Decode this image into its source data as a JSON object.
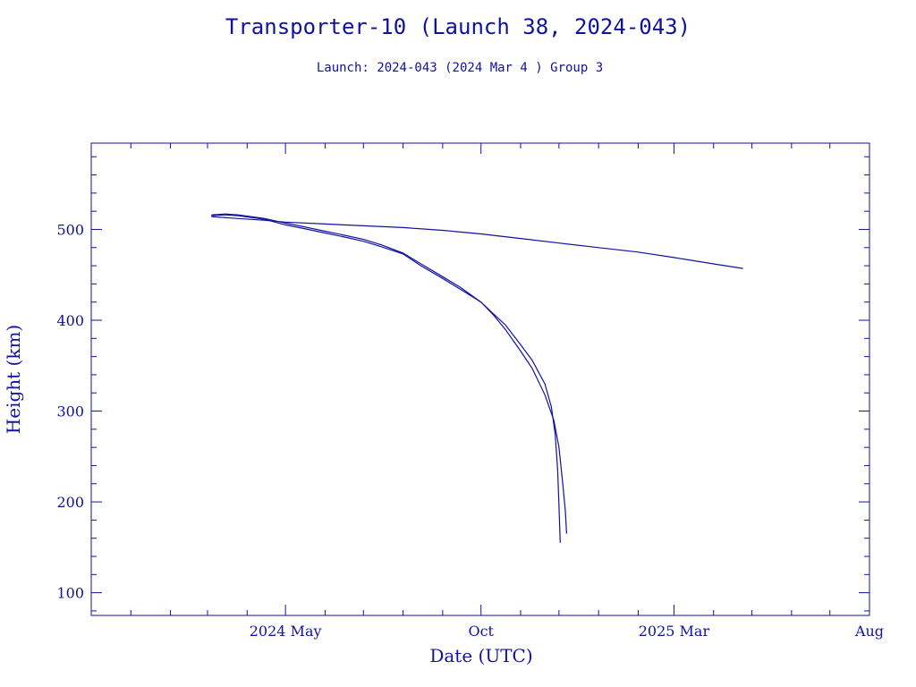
{
  "chart_data": {
    "type": "line",
    "title": "Transporter-10 (Launch 38, 2024-043)",
    "subtitle": "Launch: 2024-043  (2024 Mar  4 )  Group 3",
    "xlabel": "Date (UTC)",
    "ylabel": "Height (km)",
    "x_domain": [
      "2023-12-01",
      "2025-08-01"
    ],
    "ylim": [
      75,
      595
    ],
    "x_ticks": [
      {
        "label": "2024 May",
        "date": "2024-05-01"
      },
      {
        "label": "Oct",
        "date": "2024-10-01"
      },
      {
        "label": "2025 Mar",
        "date": "2025-03-01"
      },
      {
        "label": "Aug",
        "date": "2025-08-01"
      }
    ],
    "x_minor_ticks": [
      "2024-01-01",
      "2024-02-01",
      "2024-03-01",
      "2024-04-01",
      "2024-06-01",
      "2024-07-01",
      "2024-08-01",
      "2024-09-01",
      "2024-11-01",
      "2024-12-01",
      "2025-01-01",
      "2025-02-01",
      "2025-04-01",
      "2025-05-01",
      "2025-06-01",
      "2025-07-01"
    ],
    "y_ticks": [
      100,
      200,
      300,
      400,
      500
    ],
    "y_minor_step": 20,
    "grid": false,
    "color": "#1111a0",
    "series": [
      {
        "x": [
          "2024-03-04",
          "2024-03-25",
          "2024-04-15",
          "2024-05-01",
          "2024-06-01",
          "2024-07-01",
          "2024-08-01",
          "2024-09-01",
          "2024-10-01",
          "2024-11-01",
          "2024-12-01",
          "2025-01-01",
          "2025-02-01",
          "2025-03-01",
          "2025-04-01",
          "2025-04-24"
        ],
        "y": [
          514,
          512,
          510,
          508,
          506,
          504,
          502,
          499,
          495,
          490,
          485,
          480,
          475,
          469,
          462,
          457
        ]
      },
      {
        "x": [
          "2024-03-04",
          "2024-03-15",
          "2024-03-25",
          "2024-04-15",
          "2024-05-01",
          "2024-05-15",
          "2024-06-01",
          "2024-06-15",
          "2024-07-01",
          "2024-07-15",
          "2024-08-01",
          "2024-08-15",
          "2024-09-01",
          "2024-09-15",
          "2024-10-01",
          "2024-10-10",
          "2024-10-20",
          "2024-11-01",
          "2024-11-10",
          "2024-11-20",
          "2024-11-27",
          "2024-12-01",
          "2024-12-04",
          "2024-12-06",
          "2024-12-07"
        ],
        "y": [
          516,
          517,
          516,
          512,
          507,
          503,
          498,
          494,
          489,
          483,
          474,
          462,
          448,
          436,
          420,
          407,
          390,
          366,
          347,
          318,
          290,
          260,
          220,
          190,
          165
        ]
      },
      {
        "x": [
          "2024-03-04",
          "2024-03-15",
          "2024-03-25",
          "2024-04-15",
          "2024-05-01",
          "2024-05-15",
          "2024-06-01",
          "2024-06-15",
          "2024-07-01",
          "2024-07-15",
          "2024-08-01",
          "2024-08-15",
          "2024-09-01",
          "2024-09-15",
          "2024-10-01",
          "2024-10-10",
          "2024-10-20",
          "2024-11-01",
          "2024-11-10",
          "2024-11-20",
          "2024-11-25",
          "2024-11-28",
          "2024-11-30",
          "2024-12-01",
          "2024-12-02"
        ],
        "y": [
          515,
          516,
          515,
          511,
          505,
          501,
          496,
          492,
          487,
          481,
          473,
          460,
          446,
          434,
          420,
          408,
          395,
          373,
          356,
          330,
          305,
          275,
          235,
          195,
          155
        ]
      }
    ]
  }
}
